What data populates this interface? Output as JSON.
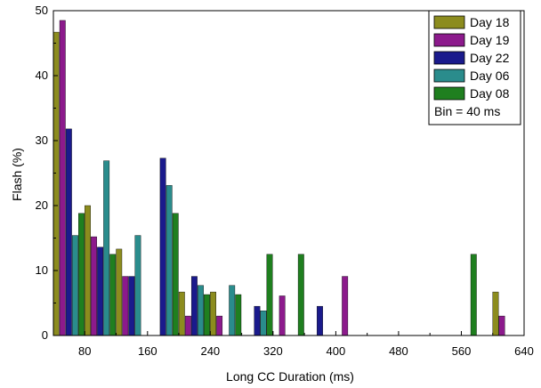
{
  "chart_data": {
    "type": "bar",
    "xlabel": "Long CC Duration (ms)",
    "ylabel": "Flash (%)",
    "xlim": [
      40,
      640
    ],
    "ylim": [
      0,
      50
    ],
    "x_ticks": [
      80,
      160,
      240,
      320,
      400,
      480,
      560,
      640
    ],
    "y_ticks": [
      0,
      10,
      20,
      30,
      40,
      50
    ],
    "bin_note": "Bin = 40 ms",
    "legend_position": "top-right",
    "series": [
      {
        "name": "Day 18",
        "color": "#8c8c1e",
        "x": [
          60,
          100,
          140,
          220,
          260,
          620
        ],
        "values": [
          46.7,
          20.0,
          13.3,
          6.7,
          6.7,
          6.7
        ]
      },
      {
        "name": "Day 19",
        "color": "#8c1a8c",
        "x": [
          60,
          100,
          140,
          220,
          260,
          340,
          420,
          620
        ],
        "values": [
          48.5,
          15.2,
          9.1,
          3.0,
          3.0,
          6.1,
          9.1,
          3.0
        ]
      },
      {
        "name": "Day 22",
        "color": "#1a1a8c",
        "x": [
          60,
          100,
          140,
          180,
          220,
          300,
          380
        ],
        "values": [
          31.8,
          13.6,
          9.1,
          27.3,
          9.1,
          4.5,
          4.5
        ]
      },
      {
        "name": "Day 06",
        "color": "#2a8c8c",
        "x": [
          60,
          100,
          140,
          180,
          220,
          260,
          300
        ],
        "values": [
          15.4,
          26.9,
          15.4,
          23.1,
          7.7,
          7.7,
          3.8
        ]
      },
      {
        "name": "Day 08",
        "color": "#1f7f1f",
        "x": [
          60,
          100,
          180,
          220,
          260,
          300,
          340,
          560
        ],
        "values": [
          18.8,
          12.5,
          18.8,
          6.3,
          6.3,
          12.5,
          12.5,
          12.5
        ]
      }
    ]
  }
}
